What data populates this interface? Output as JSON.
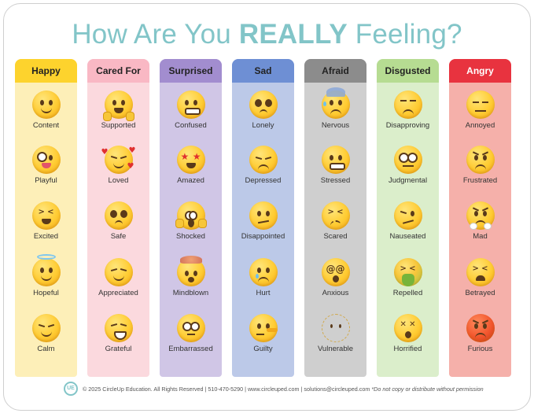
{
  "title": {
    "prefix": "How Are You ",
    "emphasis": "REALLY",
    "suffix": " Feeling?"
  },
  "columns": [
    {
      "header": "Happy",
      "header_color": "#fdd32d",
      "header_text_color": "#222222",
      "body_color": "#fdefb8",
      "items": [
        {
          "label": "Content",
          "icon": "slightly-smiling-face-icon"
        },
        {
          "label": "Playful",
          "icon": "zany-face-icon"
        },
        {
          "label": "Excited",
          "icon": "grinning-squinting-face-icon"
        },
        {
          "label": "Hopeful",
          "icon": "smiling-face-with-halo-icon"
        },
        {
          "label": "Calm",
          "icon": "relieved-face-icon"
        }
      ]
    },
    {
      "header": "Cared For",
      "header_color": "#f9b8c4",
      "header_text_color": "#222222",
      "body_color": "#fbd9de",
      "items": [
        {
          "label": "Supported",
          "icon": "hugging-face-icon"
        },
        {
          "label": "Loved",
          "icon": "smiling-face-with-hearts-icon"
        },
        {
          "label": "Safe",
          "icon": "pleading-face-icon"
        },
        {
          "label": "Appreciated",
          "icon": "smiling-face-with-smiling-eyes-icon"
        },
        {
          "label": "Grateful",
          "icon": "beaming-face-icon"
        }
      ]
    },
    {
      "header": "Surprised",
      "header_color": "#a28dcf",
      "header_text_color": "#222222",
      "body_color": "#d0c6e6",
      "items": [
        {
          "label": "Confused",
          "icon": "grimacing-face-icon"
        },
        {
          "label": "Amazed",
          "icon": "star-struck-icon"
        },
        {
          "label": "Shocked",
          "icon": "face-screaming-in-fear-icon"
        },
        {
          "label": "Mindblown",
          "icon": "exploding-head-icon"
        },
        {
          "label": "Embarrassed",
          "icon": "flushed-face-icon"
        }
      ]
    },
    {
      "header": "Sad",
      "header_color": "#6e8fd4",
      "header_text_color": "#222222",
      "body_color": "#bcc9e8",
      "items": [
        {
          "label": "Lonely",
          "icon": "pleading-face-icon"
        },
        {
          "label": "Depressed",
          "icon": "pensive-face-icon"
        },
        {
          "label": "Disappointed",
          "icon": "confused-face-icon"
        },
        {
          "label": "Hurt",
          "icon": "crying-face-icon"
        },
        {
          "label": "Guilty",
          "icon": "lying-face-icon"
        }
      ]
    },
    {
      "header": "Afraid",
      "header_color": "#8c8c8c",
      "header_text_color": "#222222",
      "body_color": "#cfcfcf",
      "items": [
        {
          "label": "Nervous",
          "icon": "anxious-face-with-sweat-icon"
        },
        {
          "label": "Stressed",
          "icon": "grimacing-face-icon"
        },
        {
          "label": "Scared",
          "icon": "confounded-face-icon"
        },
        {
          "label": "Anxious",
          "icon": "face-with-spiral-eyes-icon"
        },
        {
          "label": "Vulnerable",
          "icon": "dotted-line-face-icon"
        }
      ]
    },
    {
      "header": "Disgusted",
      "header_color": "#b6dc92",
      "header_text_color": "#222222",
      "body_color": "#dbeecb",
      "items": [
        {
          "label": "Disapproving",
          "icon": "unamused-face-icon"
        },
        {
          "label": "Judgmental",
          "icon": "face-with-rolling-eyes-icon"
        },
        {
          "label": "Nauseated",
          "icon": "woozy-face-icon"
        },
        {
          "label": "Repelled",
          "icon": "face-vomiting-icon"
        },
        {
          "label": "Horrified",
          "icon": "face-with-crossed-out-eyes-icon"
        }
      ]
    },
    {
      "header": "Angry",
      "header_color": "#e8333f",
      "header_text_color": "#ffffff",
      "body_color": "#f5b0aa",
      "items": [
        {
          "label": "Annoyed",
          "icon": "expressionless-face-icon"
        },
        {
          "label": "Frustrated",
          "icon": "pouting-face-icon"
        },
        {
          "label": "Mad",
          "icon": "face-with-steam-icon"
        },
        {
          "label": "Betrayed",
          "icon": "tired-face-icon"
        },
        {
          "label": "Furious",
          "icon": "angry-red-face-icon"
        }
      ]
    }
  ],
  "footer": {
    "copyright": "© 2025 CircleUp Education. All Rights Reserved | 510-470-5290 | www.circleuped.com | solutions@circleuped.com",
    "note": " *Do not copy or distribute without permission",
    "logo_icon": "circleup-logo-icon"
  },
  "colors": {
    "title": "#82c5c8"
  }
}
